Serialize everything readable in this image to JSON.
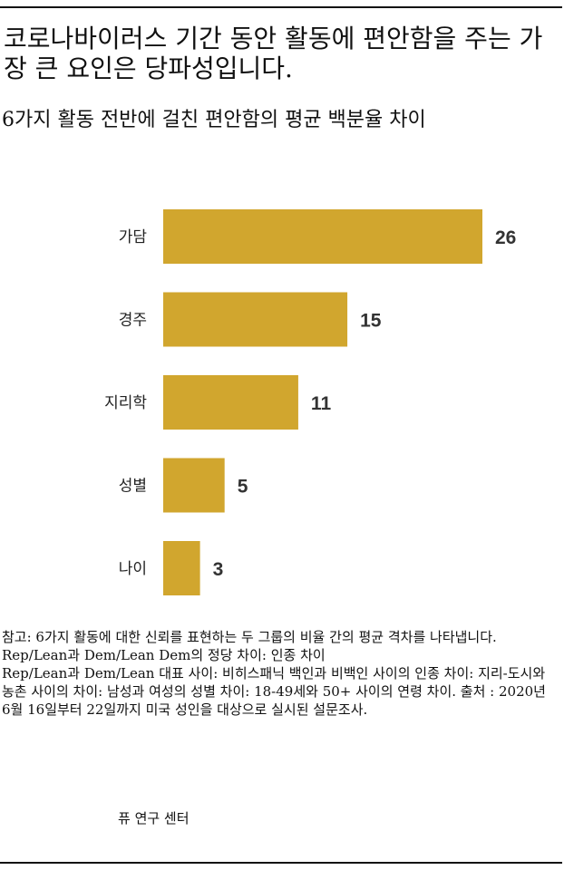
{
  "title": "코로나바이러스 기간 동안 활동에 편안함을 주는 가장 큰 요인은 당파성입니다.",
  "subtitle": "6가지 활동 전반에 걸친 편안함의 평균 백분율 차이",
  "chart_data": {
    "type": "bar",
    "orientation": "horizontal",
    "categories": [
      "가담",
      "경주",
      "지리학",
      "성별",
      "나이"
    ],
    "values": [
      26,
      15,
      11,
      5,
      3
    ],
    "data_labels": [
      "26",
      "15",
      "11",
      "5",
      "3"
    ],
    "bar_color": "#D1A62E",
    "xlim": [
      0,
      30
    ],
    "grid": false,
    "legend": "none"
  },
  "note": [
    "참고: 6가지 활동에 대한 신뢰를 표현하는 두 그룹의 비율 간의 평균 격차를 나타냅니다. Rep/Lean과 Dem/Lean Dem의 정당 차이: 인종 차이",
    "Rep/Lean과 Dem/Lean 대표 사이: 비히스패닉 백인과 비백인 사이의 인종 차이: 지리-도시와 농촌 사이의 차이: 남성과 여성의 성별 차이: 18-49세와 50+ 사이의 연령 차이. 출처 : 2020년 6월 16일부터 22일까지 미국 성인을 대상으로 실시된 설문조사."
  ],
  "source": "퓨 연구 센터"
}
